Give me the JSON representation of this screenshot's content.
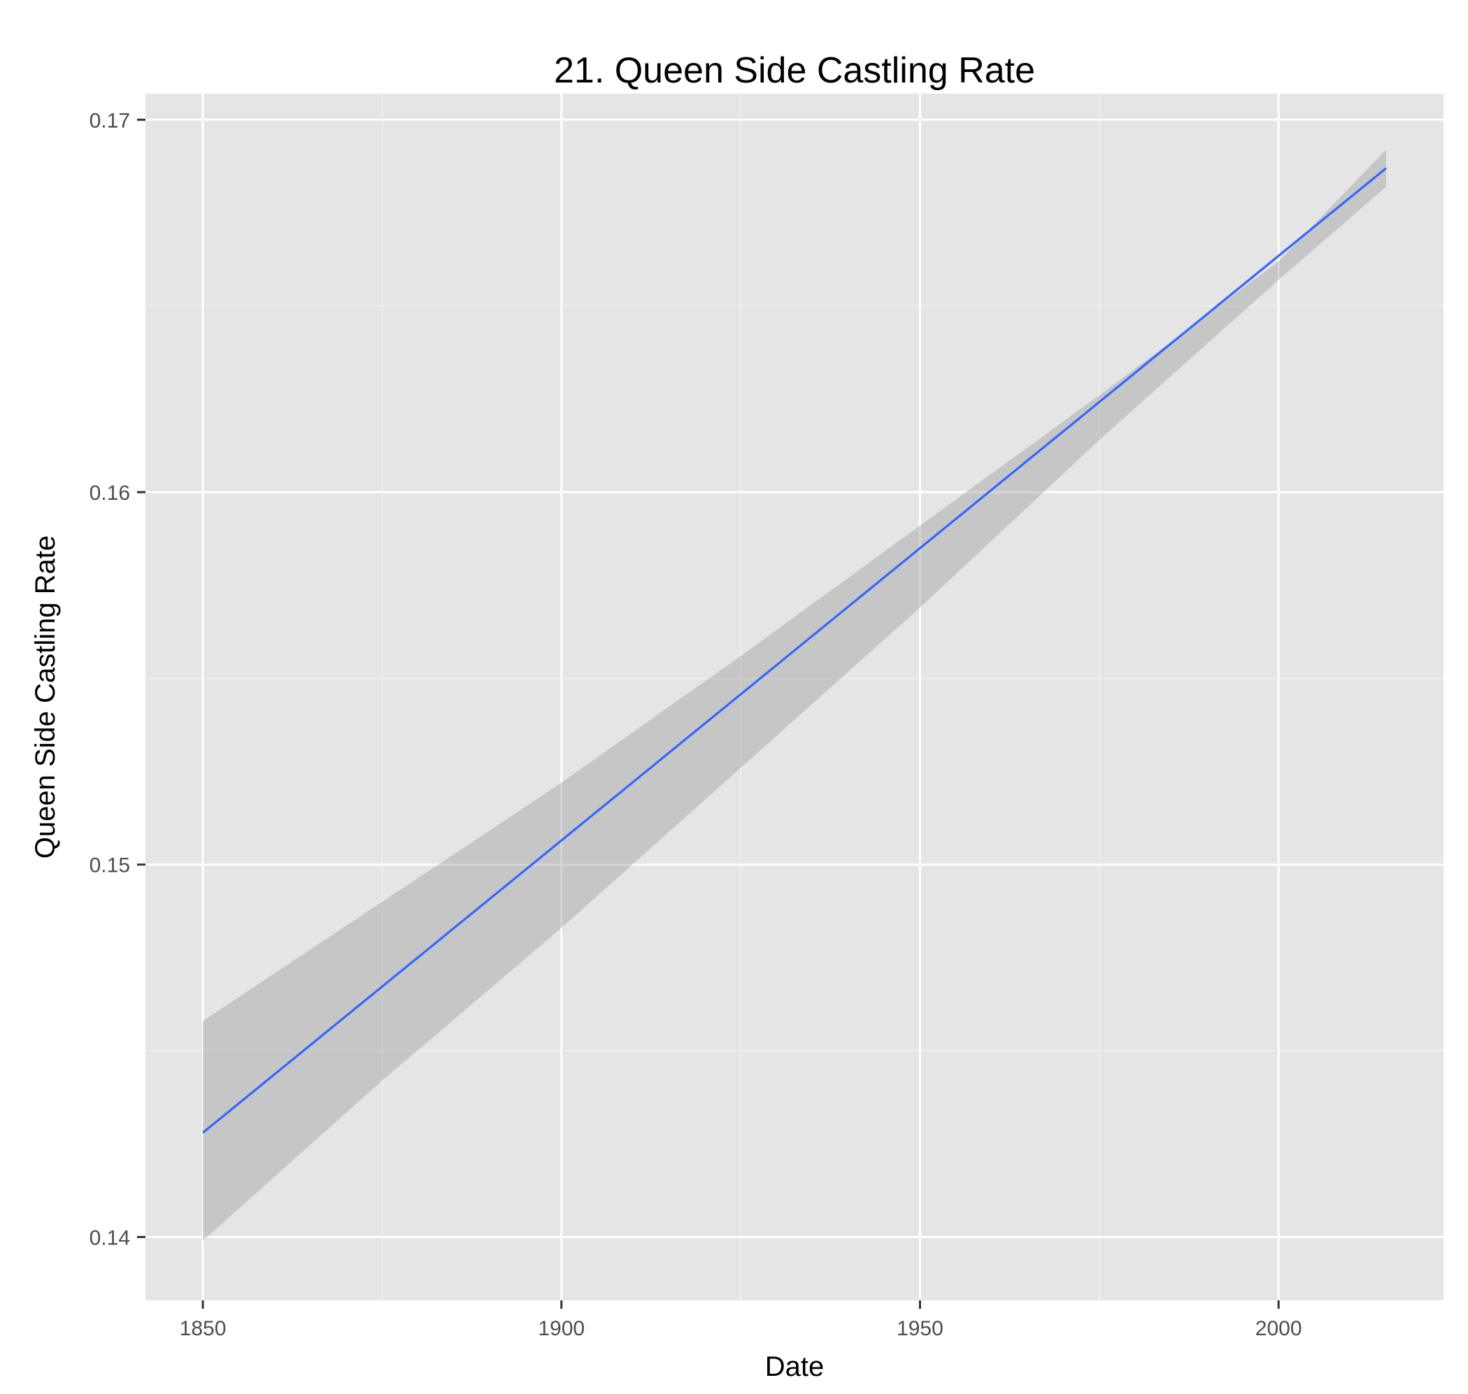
{
  "chart_data": {
    "type": "line",
    "title": "21. Queen Side Castling Rate",
    "xlabel": "Date",
    "ylabel": "Queen Side Castling Rate",
    "xlim": [
      1842,
      2023
    ],
    "ylim": [
      0.1383,
      0.1707
    ],
    "x_ticks": [
      1850,
      1900,
      1950,
      2000
    ],
    "x_tick_labels": [
      "1850",
      "1900",
      "1950",
      "2000"
    ],
    "x_minor_ticks": [
      1875,
      1925,
      1975
    ],
    "y_ticks": [
      0.14,
      0.15,
      0.16,
      0.17
    ],
    "y_tick_labels": [
      "0.14",
      "0.15",
      "0.16",
      "0.17"
    ],
    "y_minor_ticks": [
      0.145,
      0.155,
      0.165
    ],
    "grid": true,
    "series": [
      {
        "x": [
          1850,
          2015
        ],
        "y": [
          0.1428,
          0.1687
        ],
        "color": "#3366ff"
      }
    ],
    "confidence_band": {
      "color": "#999999",
      "opacity": 0.4,
      "x": [
        1850,
        1875,
        1900,
        1925,
        1950,
        1975,
        2000,
        2015
      ],
      "upper": [
        0.1458,
        0.149,
        0.1522,
        0.1556,
        0.1591,
        0.1626,
        0.1662,
        0.1692
      ],
      "lower": [
        0.1399,
        0.1442,
        0.1483,
        0.1526,
        0.1569,
        0.1614,
        0.1657,
        0.1682
      ]
    },
    "background": "#e5e5e5",
    "major_grid_color": "#ffffff",
    "minor_grid_color": "#f2f2f2"
  }
}
